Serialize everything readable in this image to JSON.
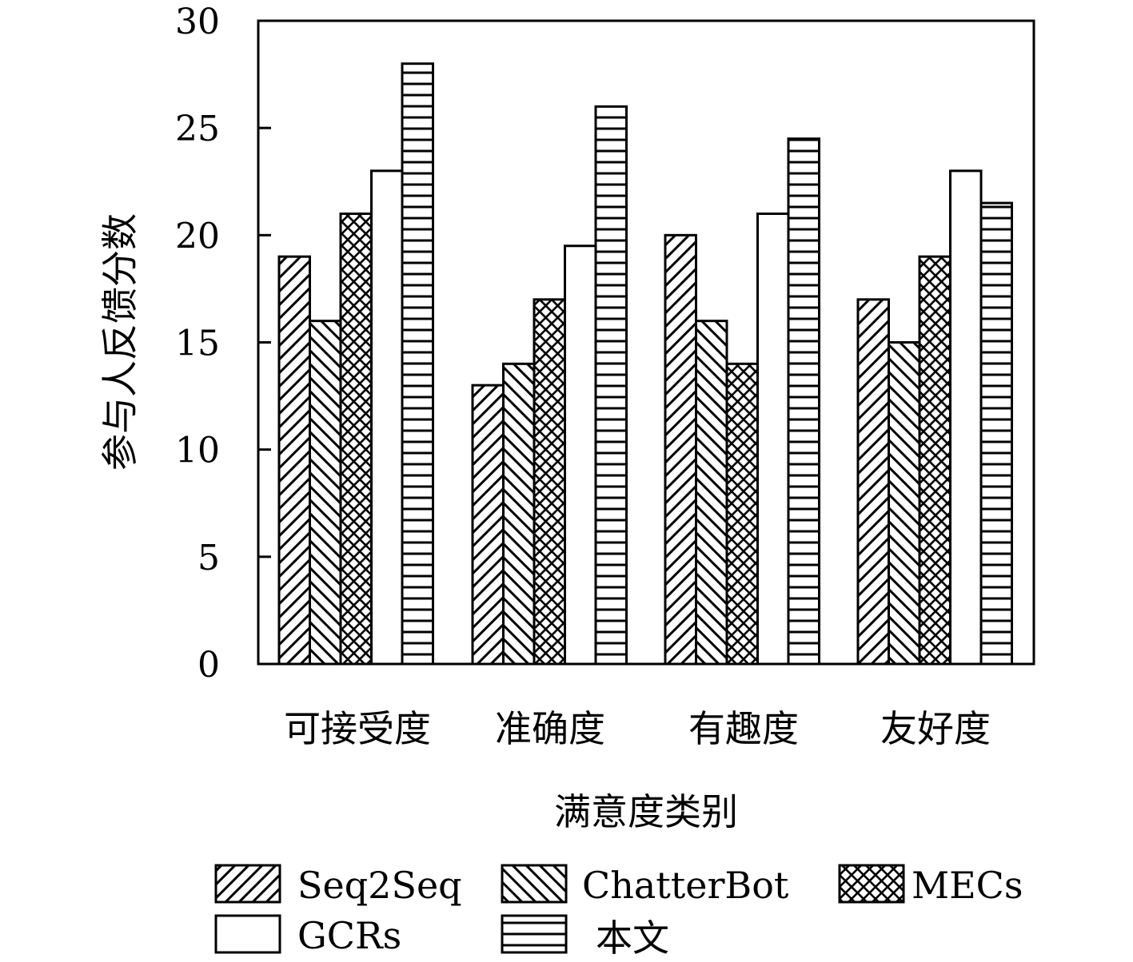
{
  "chart_data": {
    "type": "bar",
    "title": "",
    "xlabel": "满意度类别",
    "ylabel": "参与人反馈分数",
    "ylim": [
      0,
      30
    ],
    "yticks": [
      "0",
      "5",
      "10",
      "15",
      "20",
      "25",
      "30"
    ],
    "categories": [
      "可接受度",
      "准确度",
      "有趣度",
      "友好度"
    ],
    "series": [
      {
        "name": "Seq2Seq",
        "pattern": "diagonal-up",
        "values": [
          19,
          13,
          20,
          17
        ]
      },
      {
        "name": "ChatterBot",
        "pattern": "diagonal-down",
        "values": [
          16,
          14,
          16,
          15
        ]
      },
      {
        "name": "MECs",
        "pattern": "crosshatch",
        "values": [
          21,
          17,
          14,
          19
        ]
      },
      {
        "name": "GCRs",
        "pattern": "none",
        "values": [
          23,
          19.5,
          21,
          23
        ]
      },
      {
        "name": "本文",
        "pattern": "horizontal",
        "values": [
          28,
          26,
          24.5,
          21.5
        ]
      }
    ],
    "grid": false,
    "legend_position": "bottom",
    "colors": {
      "stroke": "#000000",
      "fill": "#ffffff"
    }
  }
}
